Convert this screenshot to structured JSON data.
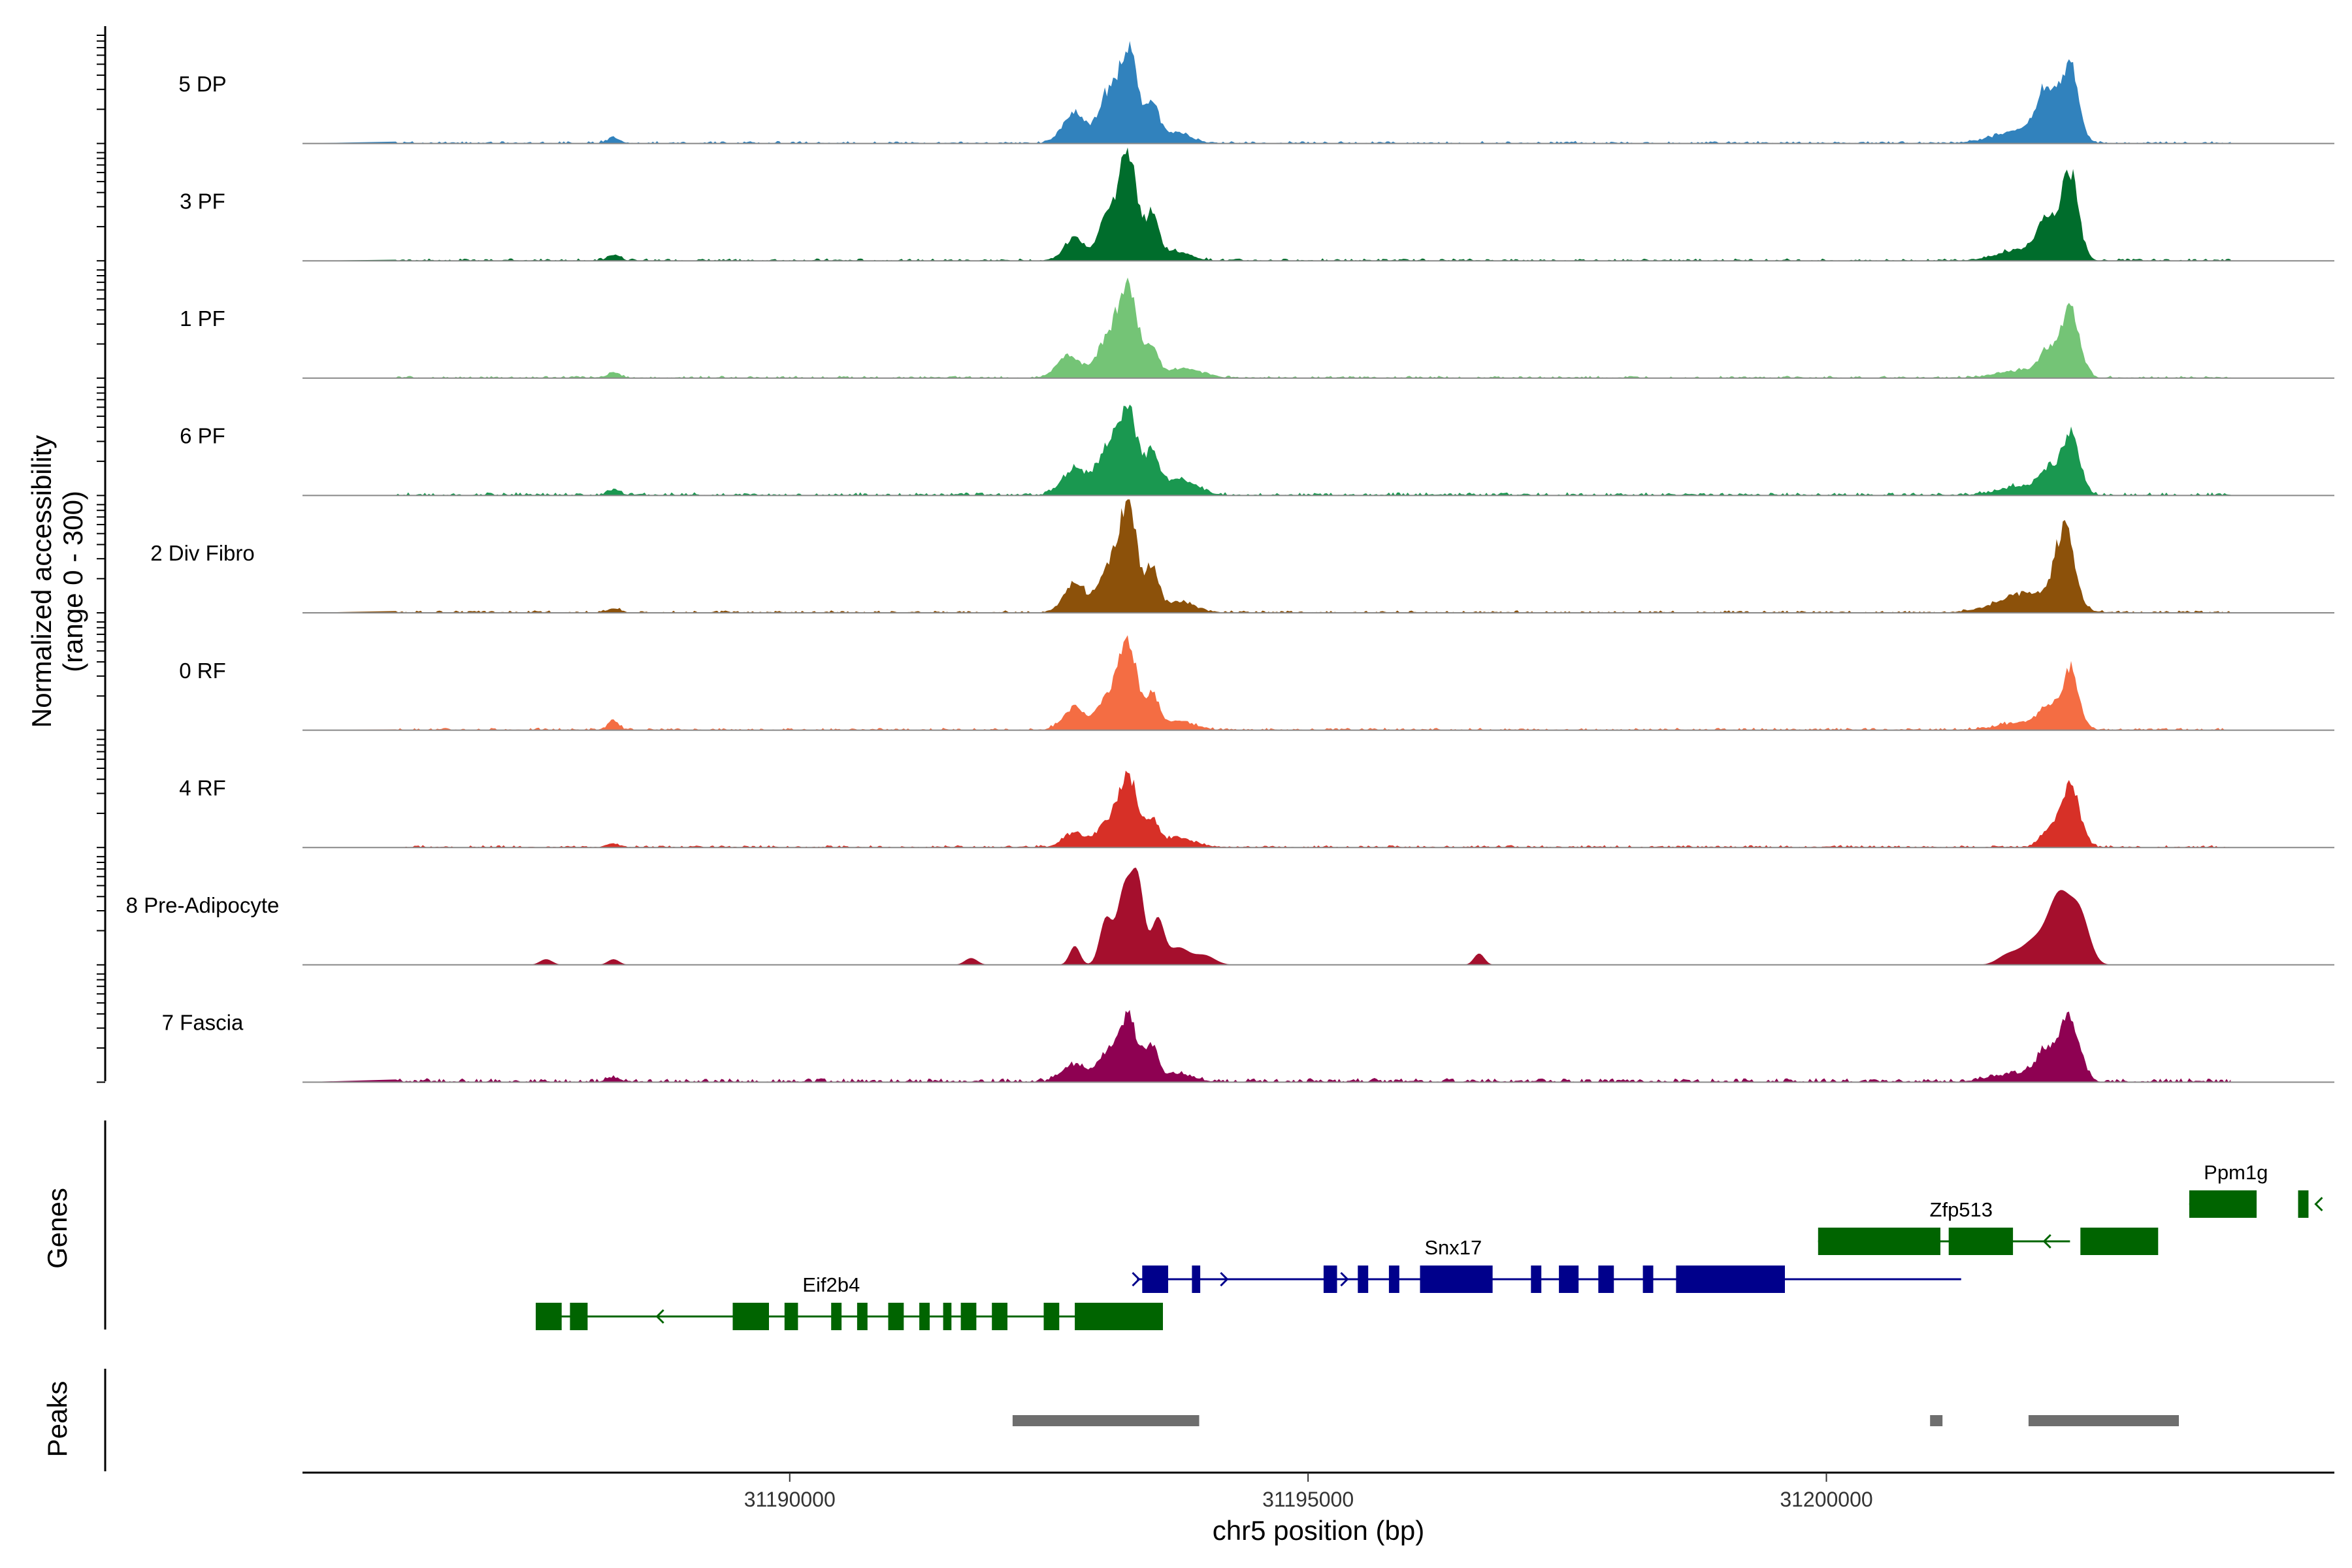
{
  "chart_data": {
    "type": "area",
    "region": "chr5",
    "x_range": [
      31185300,
      31204900
    ],
    "y_range": [
      0,
      300
    ],
    "xlabel": "chr5 position (bp)",
    "ylabel_line1": "Normalized accessibility",
    "ylabel_line2": "(range 0 - 300)",
    "x_ticks": [
      {
        "value": 31190000,
        "label": "31190000"
      },
      {
        "value": 31195000,
        "label": "31195000"
      },
      {
        "value": 31200000,
        "label": "31200000"
      }
    ],
    "tracks": [
      {
        "name": "5 DP",
        "color": "#3182bd",
        "noise": 3,
        "peaks": [
          [
            31188300,
            15,
            60
          ],
          [
            31192750,
            80,
            110
          ],
          [
            31193050,
            110,
            80
          ],
          [
            31193260,
            250,
            95
          ],
          [
            31193500,
            90,
            60
          ],
          [
            31193700,
            30,
            150
          ],
          [
            31201900,
            35,
            260
          ],
          [
            31202130,
            130,
            90
          ],
          [
            31202350,
            200,
            80
          ]
        ]
      },
      {
        "name": "3 PF",
        "color": "#006d2c",
        "noise": 3,
        "peaks": [
          [
            31188300,
            15,
            60
          ],
          [
            31192750,
            60,
            100
          ],
          [
            31193050,
            100,
            80
          ],
          [
            31193260,
            290,
            90
          ],
          [
            31193500,
            110,
            60
          ],
          [
            31193700,
            25,
            150
          ],
          [
            31201900,
            30,
            230
          ],
          [
            31202130,
            100,
            90
          ],
          [
            31202350,
            235,
            80
          ]
        ]
      },
      {
        "name": "1 PF",
        "color": "#74c476",
        "noise": 3,
        "peaks": [
          [
            31188300,
            15,
            60
          ],
          [
            31192700,
            60,
            120
          ],
          [
            31193050,
            90,
            90
          ],
          [
            31193260,
            250,
            95
          ],
          [
            31193500,
            70,
            60
          ],
          [
            31193800,
            25,
            180
          ],
          [
            31201900,
            20,
            240
          ],
          [
            31202130,
            60,
            80
          ],
          [
            31202350,
            185,
            90
          ]
        ]
      },
      {
        "name": "6 PF",
        "color": "#1a9850",
        "noise": 4,
        "peaks": [
          [
            31188300,
            15,
            60
          ],
          [
            31192750,
            70,
            120
          ],
          [
            31193050,
            110,
            90
          ],
          [
            31193260,
            230,
            95
          ],
          [
            31193500,
            100,
            60
          ],
          [
            31193750,
            40,
            170
          ],
          [
            31201900,
            25,
            220
          ],
          [
            31202130,
            50,
            80
          ],
          [
            31202350,
            160,
            90
          ]
        ]
      },
      {
        "name": "2 Div Fibro",
        "color": "#8c510a",
        "noise": 3,
        "peaks": [
          [
            31188300,
            12,
            60
          ],
          [
            31192750,
            80,
            100
          ],
          [
            31193050,
            100,
            90
          ],
          [
            31193260,
            290,
            90
          ],
          [
            31193500,
            110,
            60
          ],
          [
            31193750,
            30,
            150
          ],
          [
            31201950,
            50,
            280
          ],
          [
            31202300,
            210,
            90
          ]
        ]
      },
      {
        "name": "0 RF",
        "color": "#f46d43",
        "noise": 3,
        "peaks": [
          [
            31188300,
            22,
            55
          ],
          [
            31192750,
            60,
            110
          ],
          [
            31193050,
            80,
            80
          ],
          [
            31193260,
            240,
            90
          ],
          [
            31193500,
            90,
            60
          ],
          [
            31193750,
            25,
            150
          ],
          [
            31201900,
            20,
            230
          ],
          [
            31202130,
            50,
            80
          ],
          [
            31202350,
            160,
            80
          ]
        ]
      },
      {
        "name": "4 RF",
        "color": "#d73027",
        "noise": 3,
        "peaks": [
          [
            31188300,
            10,
            60
          ],
          [
            31192750,
            40,
            110
          ],
          [
            31193050,
            60,
            80
          ],
          [
            31193260,
            200,
            90
          ],
          [
            31193500,
            70,
            60
          ],
          [
            31193750,
            25,
            150
          ],
          [
            31202130,
            40,
            80
          ],
          [
            31202350,
            170,
            90
          ]
        ]
      },
      {
        "name": "8 Pre-Adipocyte",
        "color": "#a50f2d",
        "noise": 0,
        "peaks": [
          [
            31187650,
            15,
            60
          ],
          [
            31188300,
            15,
            55
          ],
          [
            31191750,
            18,
            60
          ],
          [
            31192750,
            50,
            50
          ],
          [
            31193050,
            120,
            60
          ],
          [
            31193230,
            200,
            70
          ],
          [
            31193360,
            210,
            60
          ],
          [
            31193550,
            120,
            60
          ],
          [
            31193750,
            45,
            100
          ],
          [
            31194000,
            25,
            100
          ],
          [
            31196650,
            30,
            50
          ],
          [
            31201750,
            25,
            100
          ],
          [
            31202000,
            60,
            120
          ],
          [
            31202250,
            180,
            110
          ],
          [
            31202450,
            120,
            90
          ]
        ]
      },
      {
        "name": "7 Fascia",
        "color": "#8e0152",
        "noise": 5,
        "peaks": [
          [
            31188300,
            12,
            60
          ],
          [
            31192750,
            45,
            120
          ],
          [
            31193050,
            60,
            90
          ],
          [
            31193260,
            170,
            100
          ],
          [
            31193500,
            80,
            60
          ],
          [
            31193750,
            20,
            150
          ],
          [
            31201900,
            25,
            260
          ],
          [
            31202130,
            70,
            90
          ],
          [
            31202350,
            165,
            90
          ]
        ]
      }
    ],
    "genes": [
      {
        "name": "Eif2b4",
        "color": "#006400",
        "row": 2,
        "strand": "-",
        "start": 31187550,
        "end": 31193300,
        "exons": [
          [
            31187550,
            31187800
          ],
          [
            31187880,
            31188050
          ],
          [
            31189450,
            31189800
          ],
          [
            31189950,
            31190080
          ],
          [
            31190400,
            31190500
          ],
          [
            31190650,
            31190750
          ],
          [
            31190950,
            31191100
          ],
          [
            31191250,
            31191350
          ],
          [
            31191480,
            31191560
          ],
          [
            31191650,
            31191800
          ],
          [
            31191950,
            31192100
          ],
          [
            31192450,
            31192600
          ],
          [
            31192750,
            31193600
          ]
        ],
        "arrows": [
          31188720
        ]
      },
      {
        "name": "Snx17",
        "color": "#00008b",
        "row": 1,
        "strand": "+",
        "start": 31193350,
        "end": 31201300,
        "exons": [
          [
            31193400,
            31193650
          ],
          [
            31193880,
            31193960
          ],
          [
            31195150,
            31195280
          ],
          [
            31195480,
            31195580
          ],
          [
            31195780,
            31195880
          ],
          [
            31196080,
            31196780
          ],
          [
            31197150,
            31197250
          ],
          [
            31197420,
            31197610
          ],
          [
            31197800,
            31197950
          ],
          [
            31198230,
            31198330
          ],
          [
            31198550,
            31199600
          ]
        ],
        "arrows": [
          31193370,
          31194220,
          31195380
        ]
      },
      {
        "name": "Zfp513",
        "color": "#006400",
        "row": 0,
        "strand": "-",
        "start": 31199920,
        "end": 31202350,
        "exons": [
          [
            31199920,
            31201100
          ],
          [
            31201180,
            31201800
          ],
          [
            31202450,
            31203200
          ]
        ],
        "arrows": [
          31202100
        ]
      },
      {
        "name": "Ppm1g",
        "color": "#006400",
        "row": -1,
        "strand": "-",
        "start": 31203500,
        "end": 31204100,
        "exons": [
          [
            31203500,
            31204150
          ],
          [
            31204550,
            31204650
          ]
        ],
        "arrows": [
          31204720
        ]
      }
    ],
    "peaks_track": [
      [
        31192150,
        31193950
      ],
      [
        31201000,
        31201120
      ],
      [
        31201950,
        31203400
      ]
    ],
    "peaks_color": "#6e6e6e",
    "panel_labels": {
      "genes": "Genes",
      "peaks": "Peaks"
    }
  }
}
